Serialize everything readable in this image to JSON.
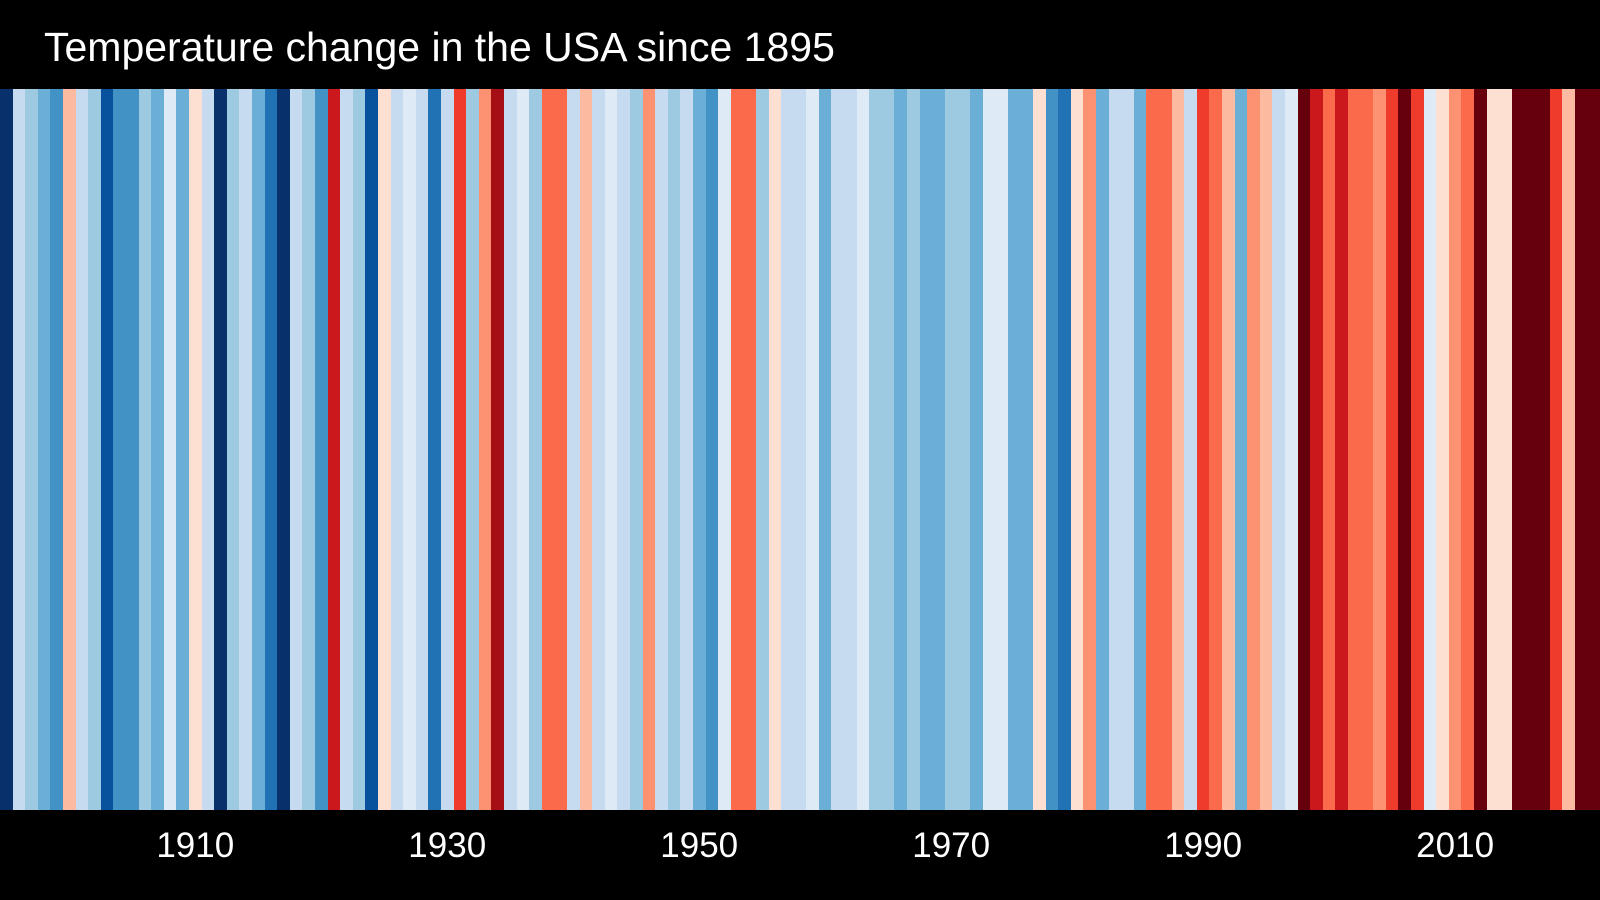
{
  "chart_data": {
    "type": "heatmap",
    "title": "Temperature change in the USA since 1895",
    "xlabel": "",
    "ylabel": "",
    "grid": false,
    "legend": "none",
    "palette": [
      "#08306b",
      "#08519c",
      "#2171b5",
      "#4292c6",
      "#6baed6",
      "#9ecae1",
      "#c6dbef",
      "#deebf7",
      "#fee0d2",
      "#fcbba1",
      "#fc9272",
      "#fb6a4a",
      "#ef3b2c",
      "#cb181d",
      "#a50f15",
      "#67000d"
    ],
    "categories": [
      1895,
      1896,
      1897,
      1898,
      1899,
      1900,
      1901,
      1902,
      1903,
      1904,
      1905,
      1906,
      1907,
      1908,
      1909,
      1910,
      1911,
      1912,
      1913,
      1914,
      1915,
      1916,
      1917,
      1918,
      1919,
      1920,
      1921,
      1922,
      1923,
      1924,
      1925,
      1926,
      1927,
      1928,
      1929,
      1930,
      1931,
      1932,
      1933,
      1934,
      1935,
      1936,
      1937,
      1938,
      1939,
      1940,
      1941,
      1942,
      1943,
      1944,
      1945,
      1946,
      1947,
      1948,
      1949,
      1950,
      1951,
      1952,
      1953,
      1954,
      1955,
      1956,
      1957,
      1958,
      1959,
      1960,
      1961,
      1962,
      1963,
      1964,
      1965,
      1966,
      1967,
      1968,
      1969,
      1970,
      1971,
      1972,
      1973,
      1974,
      1975,
      1976,
      1977,
      1978,
      1979,
      1980,
      1981,
      1982,
      1983,
      1984,
      1985,
      1986,
      1987,
      1988,
      1989,
      1990,
      1991,
      1992,
      1993,
      1994,
      1995,
      1996,
      1997,
      1998,
      1999,
      2000,
      2001,
      2002,
      2003,
      2004,
      2005,
      2006,
      2007,
      2008,
      2009,
      2010,
      2011,
      2012,
      2013,
      2014,
      2015,
      2016,
      2017,
      2018,
      2019,
      2020,
      2021
    ],
    "color_level": [
      0,
      6,
      5,
      4,
      3,
      9,
      6,
      5,
      1,
      3,
      3,
      5,
      4,
      7,
      4,
      8,
      6,
      0,
      5,
      6,
      4,
      2,
      0,
      6,
      5,
      3,
      13,
      6,
      5,
      1,
      8,
      6,
      7,
      6,
      2,
      6,
      12,
      5,
      10,
      14,
      6,
      7,
      5,
      11,
      11,
      6,
      9,
      6,
      7,
      6,
      5,
      10,
      6,
      5,
      6,
      4,
      3,
      7,
      11,
      11,
      5,
      8,
      6,
      6,
      7,
      4,
      6,
      6,
      7,
      5,
      5,
      4,
      5,
      4,
      4,
      5,
      5,
      4,
      7,
      7,
      4,
      4,
      8,
      3,
      2,
      8,
      10,
      4,
      6,
      6,
      4,
      11,
      11,
      9,
      6,
      12,
      11,
      9,
      4,
      10,
      9,
      6,
      7,
      15,
      13,
      11,
      13,
      11,
      11,
      10,
      12,
      15,
      12,
      7,
      8,
      10,
      11,
      15,
      8,
      8,
      15,
      15,
      15,
      12,
      9,
      15,
      15
    ],
    "x_ticks": [
      "1910",
      "1930",
      "1950",
      "1970",
      "1990",
      "2010"
    ]
  }
}
